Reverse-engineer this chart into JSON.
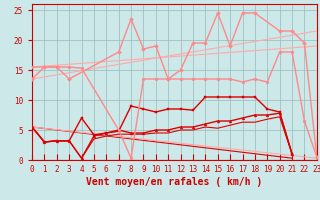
{
  "bg_color": "#cce8e8",
  "grid_color": "#99bbbb",
  "xlabel": "Vent moyen/en rafales ( km/h )",
  "xlim": [
    0,
    23
  ],
  "ylim": [
    0,
    26
  ],
  "yticks": [
    0,
    5,
    10,
    15,
    20,
    25
  ],
  "xticks": [
    0,
    1,
    2,
    3,
    4,
    5,
    6,
    7,
    8,
    9,
    10,
    11,
    12,
    13,
    14,
    15,
    16,
    17,
    18,
    19,
    20,
    21,
    22,
    23
  ],
  "lines": [
    {
      "x": [
        0,
        1,
        2,
        3,
        4,
        5,
        6,
        7,
        8,
        9,
        10,
        11,
        12,
        13,
        14,
        15,
        16,
        17,
        18,
        19,
        20,
        21
      ],
      "y": [
        5.5,
        3.0,
        3.2,
        3.2,
        7.0,
        4.2,
        4.5,
        4.8,
        9.0,
        8.5,
        8.0,
        8.5,
        8.5,
        8.3,
        10.5,
        10.5,
        10.5,
        10.5,
        10.5,
        8.5,
        8.0,
        1.0
      ],
      "color": "#dd0000",
      "lw": 1.0,
      "marker": "s",
      "ms": 2.0,
      "zorder": 5
    },
    {
      "x": [
        0,
        1,
        2,
        3,
        4,
        5,
        6,
        7,
        8,
        9,
        10,
        11,
        12,
        13,
        14,
        15,
        16,
        17,
        18,
        19,
        20,
        21
      ],
      "y": [
        5.5,
        3.0,
        3.2,
        3.2,
        0.3,
        4.0,
        4.5,
        5.0,
        4.5,
        4.5,
        5.0,
        5.0,
        5.5,
        5.5,
        6.0,
        6.5,
        6.5,
        7.0,
        7.5,
        7.5,
        7.8,
        1.0
      ],
      "color": "#dd0000",
      "lw": 1.0,
      "marker": "^",
      "ms": 2.0,
      "zorder": 5
    },
    {
      "x": [
        0,
        1,
        2,
        3,
        4,
        5,
        6,
        7,
        8,
        9,
        10,
        11,
        12,
        13,
        14,
        15,
        16,
        17,
        18,
        19,
        20,
        21
      ],
      "y": [
        5.5,
        3.0,
        3.2,
        3.2,
        0.3,
        3.5,
        4.0,
        4.3,
        4.3,
        4.3,
        4.5,
        4.5,
        5.0,
        5.0,
        5.5,
        5.3,
        5.8,
        6.3,
        6.3,
        6.8,
        7.2,
        1.0
      ],
      "color": "#dd0000",
      "lw": 0.8,
      "marker": null,
      "ms": 0,
      "zorder": 4
    },
    {
      "x": [
        0,
        21
      ],
      "y": [
        5.5,
        0.3
      ],
      "color": "#dd0000",
      "lw": 0.8,
      "marker": null,
      "ms": 0,
      "zorder": 3
    },
    {
      "x": [
        0,
        1,
        2,
        3,
        7,
        8,
        9,
        10,
        11,
        12,
        13,
        14,
        15,
        16,
        17,
        18,
        20,
        21,
        22,
        23
      ],
      "y": [
        13.5,
        15.5,
        15.5,
        13.5,
        18.0,
        23.5,
        18.5,
        19.0,
        13.5,
        15.0,
        19.5,
        19.5,
        24.5,
        19.0,
        24.5,
        24.5,
        21.5,
        21.5,
        19.5,
        0.5
      ],
      "color": "#ff8888",
      "lw": 1.0,
      "marker": "D",
      "ms": 2.0,
      "zorder": 5
    },
    {
      "x": [
        0,
        1,
        2,
        3,
        4,
        7,
        8,
        9,
        10,
        11,
        12,
        13,
        14,
        15,
        16,
        17,
        18,
        19,
        20,
        21,
        22,
        23
      ],
      "y": [
        15.5,
        15.5,
        15.5,
        15.5,
        15.3,
        5.0,
        0.3,
        13.5,
        13.5,
        13.5,
        13.5,
        13.5,
        13.5,
        13.5,
        13.5,
        13.0,
        13.5,
        13.0,
        18.0,
        18.0,
        6.5,
        0.5
      ],
      "color": "#ff8888",
      "lw": 1.0,
      "marker": "o",
      "ms": 2.0,
      "zorder": 5
    },
    {
      "x": [
        0,
        23
      ],
      "y": [
        13.5,
        21.5
      ],
      "color": "#ffaaaa",
      "lw": 0.8,
      "marker": null,
      "ms": 0,
      "zorder": 3
    },
    {
      "x": [
        0,
        23
      ],
      "y": [
        15.5,
        19.0
      ],
      "color": "#ffaaaa",
      "lw": 0.8,
      "marker": null,
      "ms": 0,
      "zorder": 3
    },
    {
      "x": [
        0,
        23
      ],
      "y": [
        5.5,
        0.3
      ],
      "color": "#ffaaaa",
      "lw": 0.8,
      "marker": null,
      "ms": 0,
      "zorder": 3
    }
  ],
  "tick_color": "#cc0000",
  "tick_fontsize": 5.5,
  "xlabel_fontsize": 7.0
}
